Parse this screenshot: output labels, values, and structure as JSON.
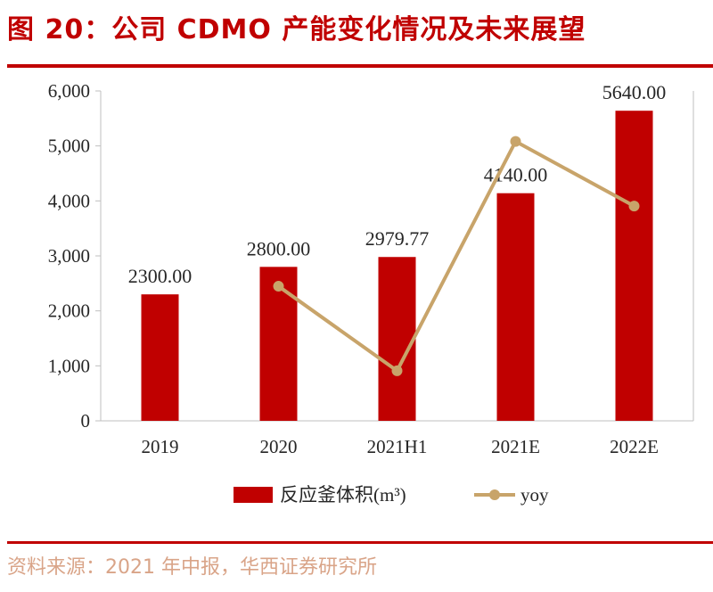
{
  "figure_title": "图 20：公司 CDMO 产能变化情况及未来展望",
  "source": "资料来源：2021 年中报，华西证券研究所",
  "colors": {
    "bar": "#c00000",
    "line": "#c8a46a",
    "accent": "#c00000"
  },
  "chart_data": {
    "type": "bar",
    "categories": [
      "2019",
      "2020",
      "2021H1",
      "2021E",
      "2022E"
    ],
    "series": [
      {
        "name": "反应釜体积(m³)",
        "type": "bar",
        "values": [
          2300.0,
          2800.0,
          2979.77,
          4140.0,
          5640.0
        ],
        "labels": [
          "2300.00",
          "2800.00",
          "2979.77",
          "4140.00",
          "5640.00"
        ]
      },
      {
        "name": "yoy",
        "type": "line",
        "values": [
          null,
          0.217,
          0.064,
          0.479,
          0.362
        ]
      }
    ],
    "y_ticks": [
      "0",
      "1,000",
      "2,000",
      "3,000",
      "4,000",
      "5,000",
      "6,000"
    ],
    "ylim": [
      0,
      6000
    ],
    "legend_position": "bottom",
    "grid": false
  }
}
